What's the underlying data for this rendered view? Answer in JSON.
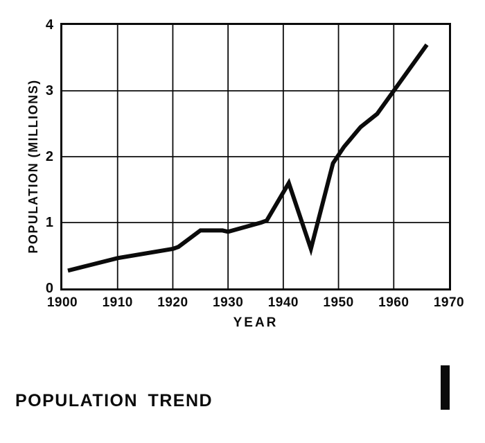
{
  "chart_data": {
    "type": "line",
    "title": "POPULATION TREND",
    "xlabel": "YEAR",
    "ylabel": "POPULATION (MILLIONS)",
    "xlim": [
      1900,
      1970
    ],
    "ylim": [
      0,
      4
    ],
    "x_ticks": [
      1900,
      1910,
      1920,
      1930,
      1940,
      1950,
      1960,
      1970
    ],
    "y_ticks": [
      0,
      1,
      2,
      3,
      4
    ],
    "grid": true,
    "legend": "none",
    "line_color": "#0b0b0b",
    "grid_color": "#0b0b0b",
    "background_color": "#ffffff",
    "series": [
      {
        "name": "population",
        "points": [
          [
            1901,
            0.27
          ],
          [
            1910,
            0.46
          ],
          [
            1920,
            0.6
          ],
          [
            1921,
            0.63
          ],
          [
            1925,
            0.88
          ],
          [
            1929,
            0.88
          ],
          [
            1930,
            0.86
          ],
          [
            1936,
            1.0
          ],
          [
            1937,
            1.03
          ],
          [
            1941,
            1.6
          ],
          [
            1945,
            0.6
          ],
          [
            1949,
            1.9
          ],
          [
            1951,
            2.15
          ],
          [
            1954,
            2.45
          ],
          [
            1957,
            2.65
          ],
          [
            1960,
            3.0
          ],
          [
            1966,
            3.7
          ]
        ]
      }
    ]
  },
  "footer": {
    "bar_color": "#0b0b0b"
  }
}
